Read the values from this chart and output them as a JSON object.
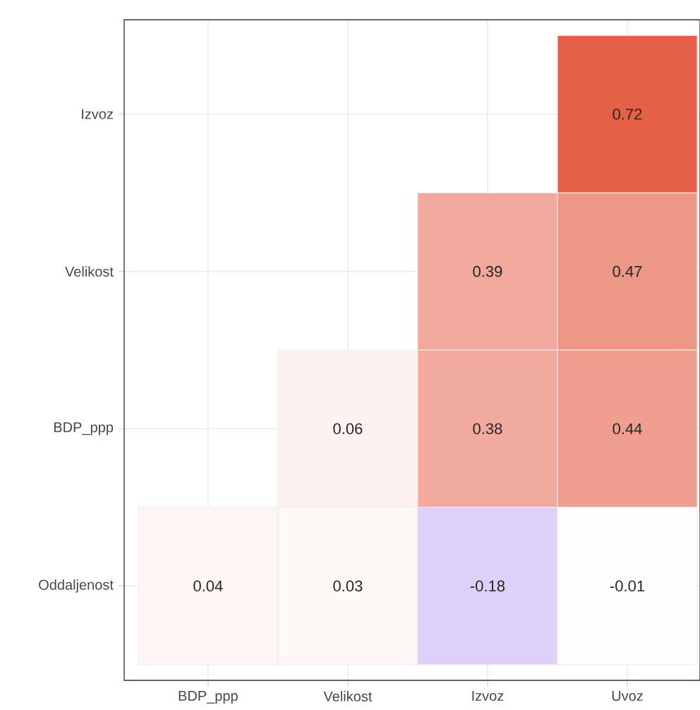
{
  "chart_data": {
    "type": "heatmap",
    "categories": [
      "BDP_ppp",
      "Velikost",
      "Izvoz",
      "Uvoz"
    ],
    "y_categories": [
      "Izvoz",
      "Velikost",
      "BDP_ppp",
      "Oddaljenost"
    ],
    "cells": [
      [
        null,
        null,
        null,
        0.72
      ],
      [
        null,
        null,
        0.39,
        0.47
      ],
      [
        null,
        0.06,
        0.38,
        0.44
      ],
      [
        0.04,
        0.03,
        -0.18,
        -0.01
      ]
    ],
    "data_labels": true,
    "grid": true
  }
}
